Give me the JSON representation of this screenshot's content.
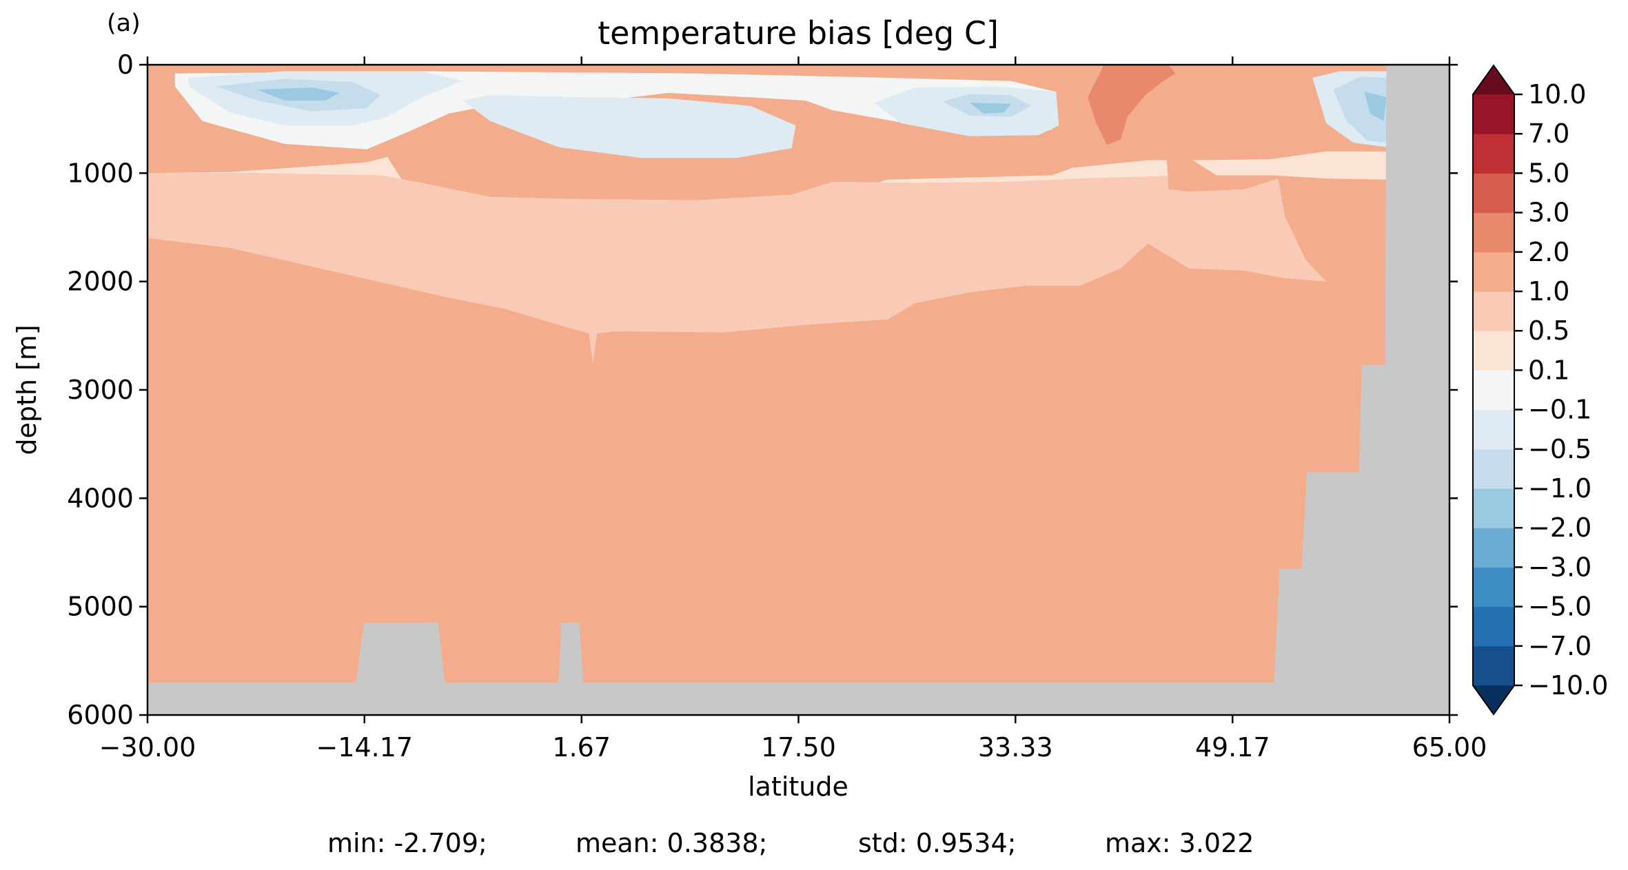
{
  "panel_label": "(a)",
  "stats": {
    "min": "min: -2.709;",
    "mean": "mean: 0.3838;",
    "std": "std: 0.9534;",
    "max": "max: 3.022"
  },
  "chart_data": {
    "type": "heatmap",
    "subtype": "filled-contour depth-latitude section",
    "title": "temperature bias [deg C]",
    "xlabel": "latitude",
    "ylabel": "depth [m]",
    "xlim": [
      -30.0,
      65.0
    ],
    "ylim": [
      6000,
      0
    ],
    "y_inverted": true,
    "xticks": [
      -30.0,
      -14.17,
      1.67,
      17.5,
      33.33,
      49.17,
      65.0
    ],
    "xtick_labels": [
      "−30.00",
      "−14.17",
      "1.67",
      "17.50",
      "33.33",
      "49.17",
      "65.00"
    ],
    "yticks": [
      0,
      1000,
      2000,
      3000,
      4000,
      5000,
      6000
    ],
    "ytick_labels": [
      "0",
      "1000",
      "2000",
      "3000",
      "4000",
      "5000",
      "6000"
    ],
    "colorbar": {
      "levels": [
        -10.0,
        -7.0,
        -5.0,
        -3.0,
        -2.0,
        -1.0,
        -0.5,
        -0.1,
        0.1,
        0.5,
        1.0,
        2.0,
        3.0,
        5.0,
        7.0,
        10.0
      ],
      "tick_labels": [
        "−10.0",
        "−7.0",
        "−5.0",
        "−3.0",
        "−2.0",
        "−1.0",
        "−0.5",
        "−0.1",
        "0.1",
        "0.5",
        "1.0",
        "2.0",
        "3.0",
        "5.0",
        "7.0",
        "10.0"
      ],
      "colors": [
        "#154f8e",
        "#2470b3",
        "#3e8dc2",
        "#6aacd4",
        "#9bc9e1",
        "#c4dcec",
        "#deebf3",
        "#f4f5f5",
        "#fbe4d6",
        "#f9cbb6",
        "#f4ad8c",
        "#e8896d",
        "#d55d4b",
        "#bf2f33",
        "#991426"
      ],
      "extend": "both",
      "under_color": "#07305f",
      "over_color": "#6a0a1f"
    },
    "land_color": "#c8c8c8",
    "bathymetry_depth_m": [
      [
        -30.0,
        5700
      ],
      [
        -14.8,
        5700
      ],
      [
        -14.2,
        5150
      ],
      [
        -8.8,
        5150
      ],
      [
        -8.3,
        5700
      ],
      [
        0.0,
        5700
      ],
      [
        0.2,
        5150
      ],
      [
        1.5,
        5150
      ],
      [
        1.8,
        5700
      ],
      [
        52.2,
        5700
      ],
      [
        52.6,
        4650
      ],
      [
        54.2,
        4650
      ],
      [
        54.6,
        3760
      ],
      [
        58.4,
        3760
      ],
      [
        58.6,
        2770
      ],
      [
        60.3,
        2770
      ],
      [
        60.4,
        0
      ]
    ],
    "contour_regions": [
      {
        "value_range": [
          0.1,
          0.5
        ],
        "polygon": [
          [
            -30,
            1000
          ],
          [
            -24,
            990
          ],
          [
            -14,
            900
          ],
          [
            -12.5,
            850
          ],
          [
            -11,
            1150
          ],
          [
            -5,
            1300
          ],
          [
            2,
            1310
          ],
          [
            10,
            1330
          ],
          [
            17,
            1320
          ],
          [
            24,
            1060
          ],
          [
            36,
            1020
          ],
          [
            37.5,
            950
          ],
          [
            43,
            880
          ],
          [
            47,
            880
          ],
          [
            52,
            870
          ],
          [
            56,
            800
          ],
          [
            60.4,
            800
          ],
          [
            60.4,
            1060
          ],
          [
            56,
            1050
          ],
          [
            52,
            1020
          ],
          [
            46,
            1020
          ],
          [
            38,
            1050
          ],
          [
            33,
            1080
          ],
          [
            26,
            1090
          ],
          [
            20,
            1080
          ],
          [
            17,
            1200
          ],
          [
            10,
            1250
          ],
          [
            2,
            1240
          ],
          [
            -5,
            1220
          ],
          [
            -10,
            1090
          ],
          [
            -13,
            1020
          ],
          [
            -22,
            1000
          ],
          [
            -30,
            1000
          ]
        ]
      },
      {
        "value_range": [
          0.5,
          1.0
        ],
        "polygon": [
          [
            -30,
            1600
          ],
          [
            -24,
            1690
          ],
          [
            -16,
            1920
          ],
          [
            -8,
            2150
          ],
          [
            -4,
            2250
          ],
          [
            0,
            2400
          ],
          [
            2.2,
            2480
          ],
          [
            2.5,
            2750
          ],
          [
            2.8,
            2480
          ],
          [
            4,
            2460
          ],
          [
            12,
            2470
          ],
          [
            18,
            2400
          ],
          [
            24,
            2350
          ],
          [
            26,
            2200
          ],
          [
            30,
            2100
          ],
          [
            34,
            2040
          ],
          [
            38,
            2040
          ],
          [
            41,
            1880
          ],
          [
            43,
            1650
          ],
          [
            46,
            1880
          ],
          [
            50,
            1900
          ],
          [
            53,
            1970
          ],
          [
            56,
            2000
          ],
          [
            60.4,
            1950
          ],
          [
            60.4,
            1060
          ],
          [
            56,
            1050
          ],
          [
            52,
            1020
          ],
          [
            46,
            1020
          ],
          [
            38,
            1050
          ],
          [
            33,
            1080
          ],
          [
            26,
            1090
          ],
          [
            20,
            1080
          ],
          [
            17,
            1200
          ],
          [
            10,
            1250
          ],
          [
            2,
            1240
          ],
          [
            -5,
            1220
          ],
          [
            -10,
            1090
          ],
          [
            -13,
            1020
          ],
          [
            -22,
            1000
          ],
          [
            -30,
            1000
          ]
        ]
      },
      {
        "value_range": [
          1.0,
          2.0
        ],
        "polygon": [
          [
            36.8,
            0
          ],
          [
            44,
            0
          ],
          [
            44.5,
            1150
          ],
          [
            46,
            1170
          ],
          [
            50,
            1150
          ],
          [
            52.5,
            1050
          ],
          [
            53,
            1400
          ],
          [
            54.5,
            1800
          ],
          [
            56,
            2000
          ],
          [
            60.4,
            1950
          ],
          [
            60.4,
            1060
          ],
          [
            56,
            1050
          ],
          [
            52,
            1020
          ],
          [
            48,
            1020
          ],
          [
            46,
            860
          ],
          [
            44,
            650
          ],
          [
            40,
            560
          ],
          [
            38,
            450
          ],
          [
            37,
            200
          ]
        ]
      },
      {
        "value_range": [
          -0.1,
          0.1
        ],
        "polygon": [
          [
            -28,
            200
          ],
          [
            -26,
            520
          ],
          [
            -20,
            730
          ],
          [
            -14,
            780
          ],
          [
            -11,
            620
          ],
          [
            -8,
            450
          ],
          [
            -4,
            350
          ],
          [
            2,
            350
          ],
          [
            8,
            260
          ],
          [
            14,
            300
          ],
          [
            18,
            330
          ],
          [
            20,
            420
          ],
          [
            28,
            600
          ],
          [
            33,
            650
          ],
          [
            36,
            600
          ],
          [
            36.3,
            250
          ],
          [
            33,
            150
          ],
          [
            24,
            120
          ],
          [
            10,
            80
          ],
          [
            -10,
            60
          ],
          [
            -28,
            80
          ]
        ]
      },
      {
        "value_range": [
          -0.5,
          -0.1
        ],
        "polygon": [
          [
            -27,
            200
          ],
          [
            -24,
            440
          ],
          [
            -20,
            560
          ],
          [
            -15,
            560
          ],
          [
            -12.5,
            480
          ],
          [
            -10,
            300
          ],
          [
            -7,
            150
          ],
          [
            -10,
            60
          ],
          [
            -20,
            60
          ],
          [
            -27,
            120
          ]
        ]
      },
      {
        "value_range": [
          -0.5,
          -0.1
        ],
        "polygon": [
          [
            -7,
            330
          ],
          [
            -5,
            520
          ],
          [
            0,
            760
          ],
          [
            6,
            860
          ],
          [
            13,
            860
          ],
          [
            17,
            770
          ],
          [
            17.3,
            560
          ],
          [
            14,
            380
          ],
          [
            8,
            310
          ],
          [
            2,
            300
          ],
          [
            -5,
            280
          ]
        ]
      },
      {
        "value_range": [
          -0.5,
          -0.1
        ],
        "polygon": [
          [
            23,
            350
          ],
          [
            25,
            540
          ],
          [
            30,
            660
          ],
          [
            35,
            650
          ],
          [
            36.5,
            560
          ],
          [
            36.3,
            250
          ],
          [
            32,
            200
          ],
          [
            26,
            210
          ]
        ]
      },
      {
        "value_range": [
          -0.5,
          -0.1
        ],
        "polygon": [
          [
            55,
            120
          ],
          [
            56,
            540
          ],
          [
            58,
            720
          ],
          [
            60.4,
            760
          ],
          [
            60.4,
            60
          ],
          [
            57,
            60
          ]
        ]
      },
      {
        "value_range": [
          -1.0,
          -0.5
        ],
        "polygon": [
          [
            -25,
            200
          ],
          [
            -22,
            330
          ],
          [
            -18,
            430
          ],
          [
            -14,
            400
          ],
          [
            -13,
            280
          ],
          [
            -15,
            160
          ],
          [
            -20,
            130
          ]
        ]
      },
      {
        "value_range": [
          -1.0,
          -0.5
        ],
        "polygon": [
          [
            28,
            340
          ],
          [
            30,
            470
          ],
          [
            33,
            480
          ],
          [
            34.5,
            380
          ],
          [
            33,
            280
          ],
          [
            30,
            270
          ]
        ]
      },
      {
        "value_range": [
          -1.0,
          -0.5
        ],
        "polygon": [
          [
            56.5,
            230
          ],
          [
            57.5,
            520
          ],
          [
            59,
            700
          ],
          [
            60.4,
            720
          ],
          [
            60.4,
            120
          ],
          [
            58.5,
            110
          ]
        ]
      },
      {
        "value_range": [
          -2.0,
          -1.0
        ],
        "polygon": [
          [
            -22,
            230
          ],
          [
            -20,
            330
          ],
          [
            -17,
            330
          ],
          [
            -16,
            260
          ],
          [
            -18,
            210
          ]
        ]
      },
      {
        "value_range": [
          -2.0,
          -1.0
        ],
        "polygon": [
          [
            30,
            350
          ],
          [
            31,
            450
          ],
          [
            32.5,
            440
          ],
          [
            33,
            360
          ]
        ]
      },
      {
        "value_range": [
          -2.0,
          -1.0
        ],
        "polygon": [
          [
            58.8,
            250
          ],
          [
            59.2,
            450
          ],
          [
            60.2,
            520
          ],
          [
            60.4,
            300
          ]
        ]
      },
      {
        "value_range": [
          2.0,
          3.0
        ],
        "polygon": [
          [
            39.8,
            0
          ],
          [
            44.5,
            0
          ],
          [
            45,
            80
          ],
          [
            44,
            160
          ],
          [
            42.8,
            280
          ],
          [
            41.5,
            480
          ],
          [
            41,
            690
          ],
          [
            40,
            740
          ],
          [
            39.2,
            530
          ],
          [
            38.6,
            300
          ]
        ]
      }
    ]
  }
}
